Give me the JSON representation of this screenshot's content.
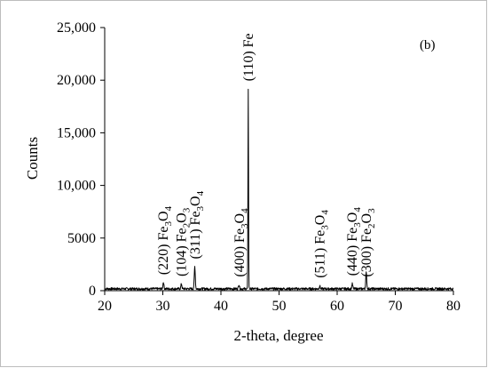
{
  "chart_data": {
    "type": "line",
    "title": "",
    "panel_label": "(b)",
    "xlabel": "2-theta, degree",
    "ylabel": "Counts",
    "xlim": [
      20,
      80
    ],
    "ylim": [
      0,
      25000
    ],
    "x_ticks": [
      20,
      30,
      40,
      50,
      60,
      70,
      80
    ],
    "x_tick_labels": [
      "20",
      "30",
      "40",
      "50",
      "60",
      "70",
      "80"
    ],
    "y_ticks": [
      0,
      5000,
      10000,
      15000,
      20000,
      25000
    ],
    "y_tick_labels": [
      "0",
      "5000",
      "10,000",
      "15,000",
      "20,000",
      "25,000"
    ],
    "grid": false,
    "legend": "none",
    "line_color": "#000000",
    "baseline": 180,
    "peaks": [
      {
        "x": 30.1,
        "y": 800
      },
      {
        "x": 33.2,
        "y": 650
      },
      {
        "x": 35.5,
        "y": 2300
      },
      {
        "x": 43.1,
        "y": 600
      },
      {
        "x": 44.7,
        "y": 19200
      },
      {
        "x": 57.0,
        "y": 450
      },
      {
        "x": 62.6,
        "y": 650
      },
      {
        "x": 65.0,
        "y": 1700
      }
    ],
    "annotations": [
      {
        "x": 30.1,
        "y": 1500,
        "hkl": "(220) Fe",
        "sub1": "3",
        "mid": "O",
        "sub2": "4"
      },
      {
        "x": 33.2,
        "y": 1350,
        "hkl": "(104) Fe",
        "sub1": "2",
        "mid": "O",
        "sub2": "3"
      },
      {
        "x": 35.6,
        "y": 3000,
        "hkl": "(311) Fe",
        "sub1": "3",
        "mid": "O",
        "sub2": "4"
      },
      {
        "x": 43.2,
        "y": 1300,
        "hkl": "(400) Fe",
        "sub1": "3",
        "mid": "O",
        "sub2": "4"
      },
      {
        "x": 44.7,
        "y": 19900,
        "hkl": "(110) Fe",
        "sub1": "",
        "mid": "",
        "sub2": ""
      },
      {
        "x": 57.0,
        "y": 1200,
        "hkl": "(511) Fe",
        "sub1": "3",
        "mid": "O",
        "sub2": "4"
      },
      {
        "x": 62.6,
        "y": 1400,
        "hkl": "(440) Fe",
        "sub1": "3",
        "mid": "O",
        "sub2": "4"
      },
      {
        "x": 65.0,
        "y": 1300,
        "hkl": "(300) Fe",
        "sub1": "2",
        "mid": "O",
        "sub2": "3"
      }
    ]
  }
}
